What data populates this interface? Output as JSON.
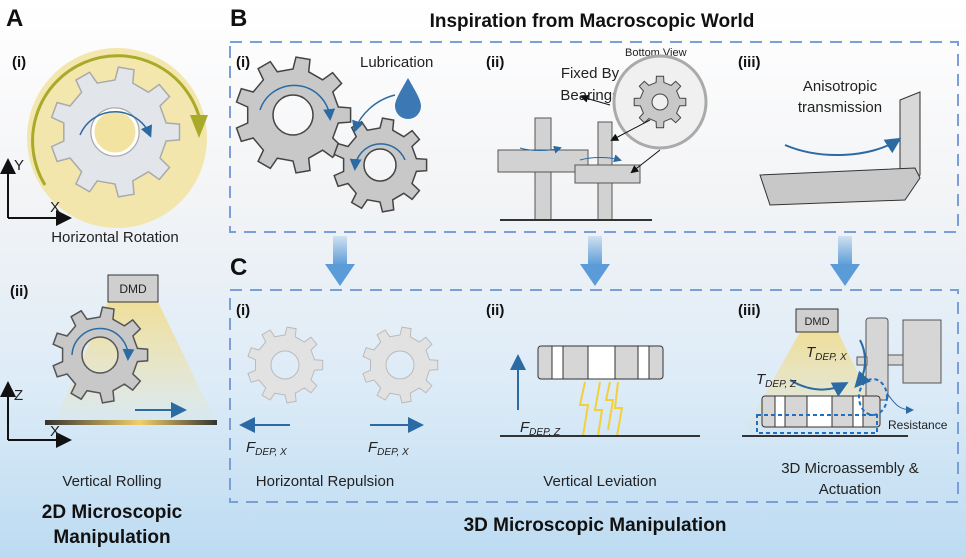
{
  "panels": {
    "A": {
      "label": "A",
      "i": {
        "tag": "(i)",
        "axis_y": "Y",
        "axis_x": "X",
        "caption": "Horizontal Rotation"
      },
      "ii": {
        "tag": "(ii)",
        "dmd": "DMD",
        "axis_z": "Z",
        "axis_x": "X",
        "caption": "Vertical Rolling"
      },
      "title_line1": "2D Microscopic",
      "title_line2": "Manipulation"
    },
    "B": {
      "label": "B",
      "title": "Inspiration from Macroscopic World",
      "i": {
        "tag": "(i)",
        "lubrication": "Lubrication"
      },
      "ii": {
        "tag": "(ii)",
        "bottom_view": "Bottom View",
        "fixed_line1": "Fixed By",
        "fixed_line2": "Bearings"
      },
      "iii": {
        "tag": "(iii)",
        "aniso_line1": "Anisotropic",
        "aniso_line2": "transmission"
      }
    },
    "C": {
      "label": "C",
      "title": "3D Microscopic Manipulation",
      "i": {
        "tag": "(i)",
        "force_main": "F",
        "force_sub": "DEP, X",
        "caption": "Horizontal Repulsion"
      },
      "ii": {
        "tag": "(ii)",
        "force_main": "F",
        "force_sub": "DEP, Z",
        "caption": "Vertical Leviation"
      },
      "iii": {
        "tag": "(iii)",
        "dmd": "DMD",
        "torque_main": "T",
        "torque_x_sub": "DEP, X",
        "torque_z_sub": "DEP, Z",
        "resistance": "Resistance",
        "caption_line1": "3D Microassembly &",
        "caption_line2": "Actuation"
      }
    }
  },
  "colors": {
    "dash_box": "#7a9fd6",
    "flow_arrow": "#5a9bd8",
    "gear": "#c8c8c8",
    "gear_light": "#e2e5ea",
    "light": "#f2e3a0",
    "arrow": "#2b6aa3",
    "rotation_arrow": "#a8aa2a"
  }
}
